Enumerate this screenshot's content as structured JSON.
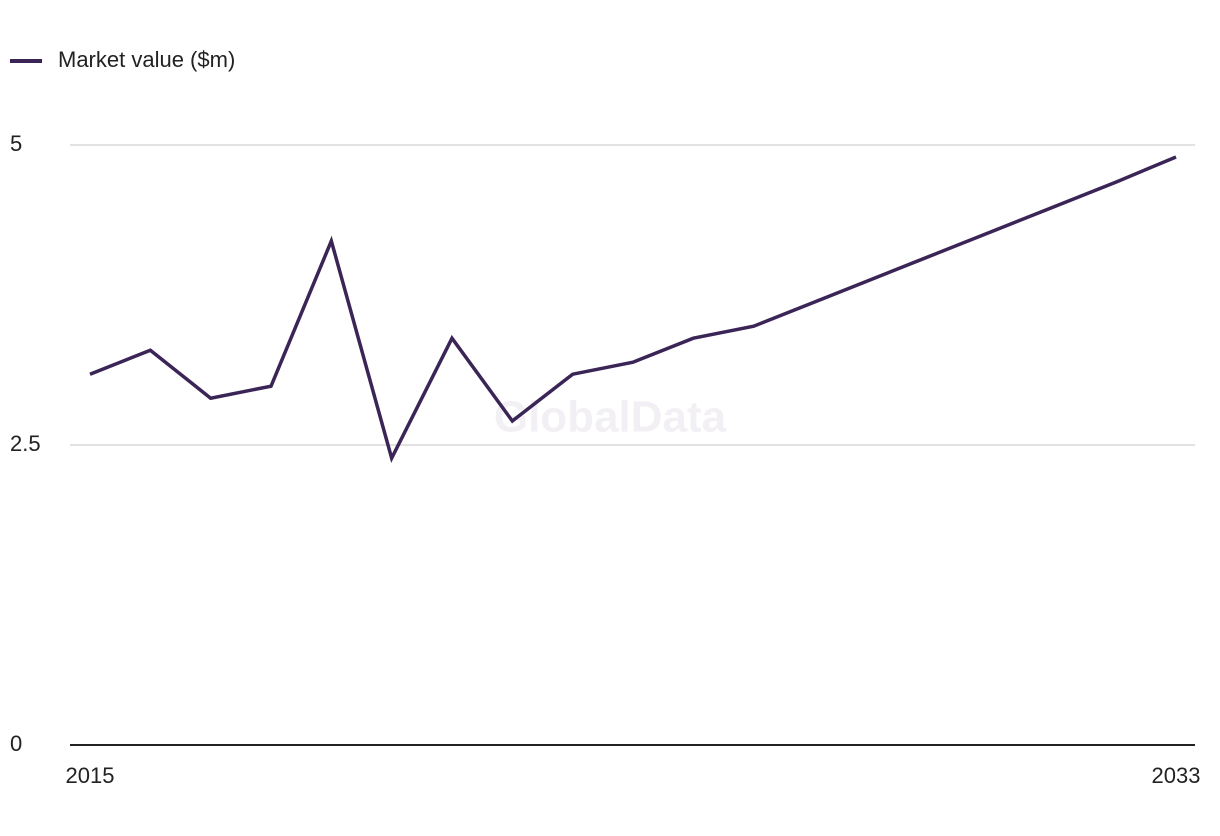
{
  "chart_data": {
    "type": "line",
    "watermark": "GlobalData",
    "x": [
      2015,
      2016,
      2017,
      2018,
      2019,
      2020,
      2021,
      2022,
      2023,
      2024,
      2025,
      2026,
      2027,
      2028,
      2029,
      2030,
      2031,
      2032,
      2033
    ],
    "series": [
      {
        "name": "Market value ($m)",
        "color": "#3a2556",
        "values": [
          3.09,
          3.29,
          2.89,
          2.99,
          4.2,
          2.39,
          3.39,
          2.7,
          3.09,
          3.19,
          3.39,
          3.49,
          3.69,
          3.89,
          4.09,
          4.29,
          4.49,
          4.69,
          4.9
        ]
      }
    ],
    "xlim": [
      2015,
      2033
    ],
    "xticks": [
      2015,
      2033
    ],
    "ylim": [
      0,
      5
    ],
    "yticks": [
      0,
      2.5,
      5
    ],
    "grid": true,
    "legend": "top-left"
  }
}
